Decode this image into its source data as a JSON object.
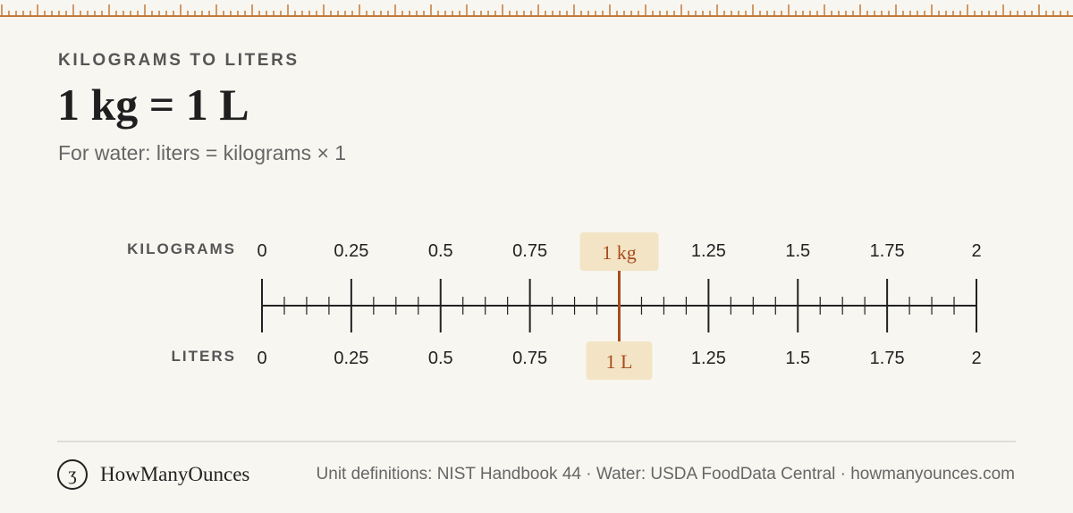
{
  "header": {
    "eyebrow": "KILOGRAMS TO LITERS",
    "headline": "1 kg = 1 L",
    "formula": "For water: liters = kilograms × 1"
  },
  "scale": {
    "top_label": "KILOGRAMS",
    "bottom_label": "LITERS",
    "min": 0,
    "max": 2,
    "major_step": 0.25,
    "minor_per_major": 4,
    "ticks": [
      "0",
      "0.25",
      "0.5",
      "0.75",
      "1",
      "1.25",
      "1.5",
      "1.75",
      "2"
    ],
    "marker_value": 1,
    "marker_top_label": "1 kg",
    "marker_bottom_label": "1 L"
  },
  "footer": {
    "brand": "HowManyOunces",
    "logo_glyph": "ʒ",
    "sources": "Unit definitions: NIST Handbook 44 · Water: USDA FoodData Central · howmanyounces.com"
  },
  "colors": {
    "background": "#f8f6f1",
    "accent": "#a84d1e",
    "highlight": "#f3e4c5",
    "ink": "#222222",
    "ruler": "#c27a3a"
  }
}
